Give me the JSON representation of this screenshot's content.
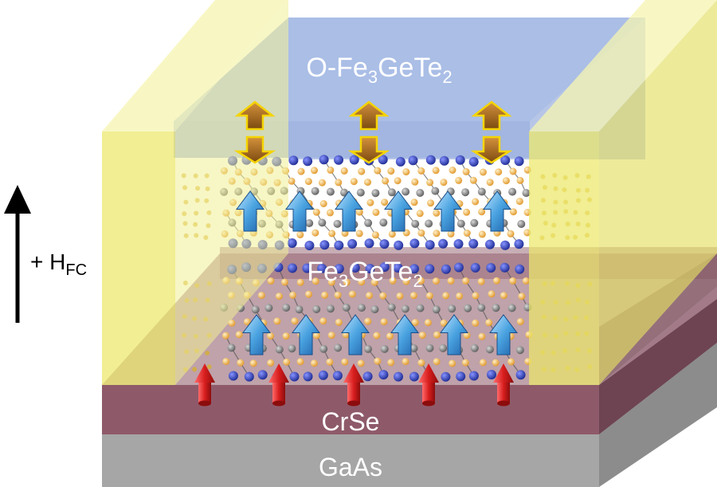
{
  "layers": {
    "oxide": {
      "base": "O-Fe",
      "sub1": "3",
      "mid": "GeTe",
      "sub2": "2"
    },
    "fgt": {
      "base": "Fe",
      "sub1": "3",
      "mid": "GeTe",
      "sub2": "2"
    },
    "crse": "CrSe",
    "gaas": "GaAs"
  },
  "field": {
    "prefix": "+ H",
    "sub": "FC"
  },
  "colors": {
    "gaas": "#9c9c9c",
    "crse": "#8e5a6a",
    "oxide": "#b3c3e6",
    "electrode": "#f1ef96",
    "fe_atom": "#f0a63e",
    "te_atom": "#2b3aa8",
    "ge_atom": "#7f7f7f",
    "blue_arrow": "#4a9fdc",
    "red_arrow": "#d42020",
    "brown_arrow": "#a26a1c",
    "arrow_outline": "#f5d400"
  },
  "icons": {
    "blue": "magnetic-moment-arrow-icon",
    "red": "interface-spin-arrow-icon",
    "brown": "exchange-bias-double-arrow-icon",
    "field": "field-direction-arrow-icon"
  }
}
